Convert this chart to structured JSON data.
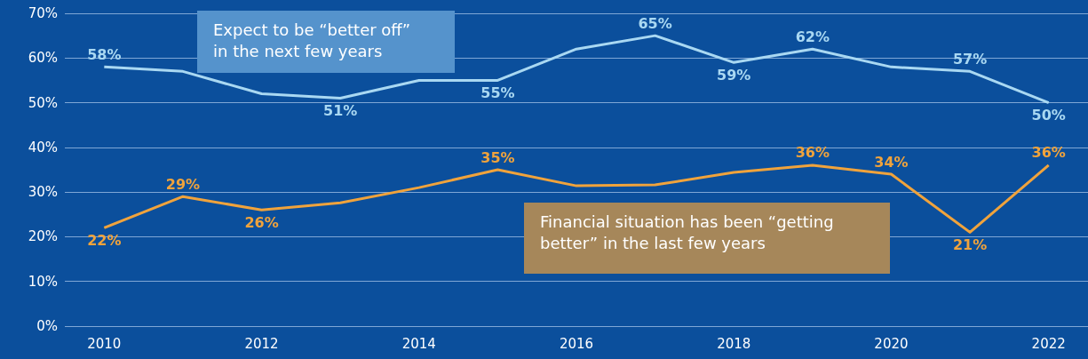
{
  "chart_data": {
    "type": "line",
    "categories": [
      "2010",
      null,
      "2012",
      null,
      "2014",
      null,
      "2016",
      null,
      "2018",
      null,
      "2020",
      null,
      "2022"
    ],
    "series": [
      {
        "color": "#a9d8f2",
        "values": [
          58,
          57,
          52,
          51,
          55,
          55,
          62,
          65,
          59,
          62,
          58,
          57,
          50
        ],
        "value_labels": [
          "58%",
          null,
          null,
          "51%",
          null,
          "55%",
          null,
          "65%",
          "59%",
          "62%",
          null,
          "57%",
          "50%"
        ]
      },
      {
        "color": "#f0a33c",
        "values": [
          22,
          29,
          26,
          27.6,
          31,
          35,
          31.4,
          31.6,
          34.4,
          36,
          34,
          21,
          36
        ],
        "value_labels": [
          "22%",
          "29%",
          "26%",
          null,
          null,
          "35%",
          null,
          null,
          null,
          "36%",
          "34%",
          "21%",
          "36%"
        ]
      }
    ],
    "ylim": [
      0,
      70
    ],
    "yticks": [
      {
        "value": 0,
        "label": "0%"
      },
      {
        "value": 10,
        "label": "10%"
      },
      {
        "value": 20,
        "label": "20%"
      },
      {
        "value": 30,
        "label": "30%"
      },
      {
        "value": 40,
        "label": "40%"
      },
      {
        "value": 50,
        "label": "50%"
      },
      {
        "value": 60,
        "label": "60%"
      },
      {
        "value": 70,
        "label": "70%"
      }
    ],
    "grid": "y",
    "marker": "none",
    "line_style": "solid",
    "annotations": [
      "Expect to be “better off”\nin the next few years",
      "Financial situation has been “getting\nbetter” in the last few years"
    ]
  }
}
